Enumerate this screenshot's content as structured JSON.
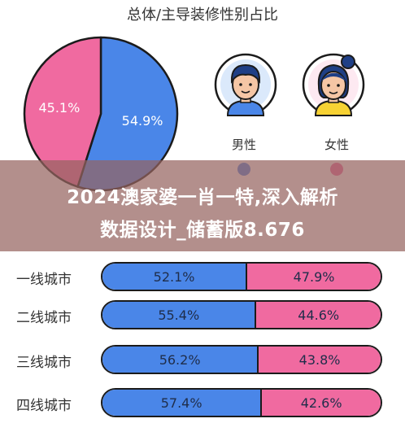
{
  "title": "总体/主导装修性别占比",
  "colors": {
    "male": "#4a86e8",
    "female": "#f06aa0",
    "outline": "#1b1b1b"
  },
  "legend": {
    "male": "男性",
    "female": "女性"
  },
  "banner": {
    "line1": "2024澳家婆一肖一特,深入解析",
    "line2": "数据设计_储蓄版8.676"
  },
  "chart_data": [
    {
      "type": "pie",
      "title": "总体/主导装修性别占比",
      "labels": [
        "男性",
        "女性"
      ],
      "values": [
        54.9,
        45.1
      ],
      "value_labels": [
        "54.9%",
        "45.1%"
      ]
    },
    {
      "type": "bar",
      "stacked": true,
      "orientation": "horizontal",
      "categories": [
        "一线城市",
        "二线城市",
        "三线城市",
        "四线城市"
      ],
      "series": [
        {
          "name": "男性",
          "values": [
            52.1,
            55.4,
            56.2,
            57.4
          ],
          "labels": [
            "52.1%",
            "55.4%",
            "56.2%",
            "57.4%"
          ]
        },
        {
          "name": "女性",
          "values": [
            47.9,
            44.6,
            43.8,
            42.6
          ],
          "labels": [
            "47.9%",
            "44.6%",
            "43.8%",
            "42.6%"
          ]
        }
      ]
    }
  ]
}
